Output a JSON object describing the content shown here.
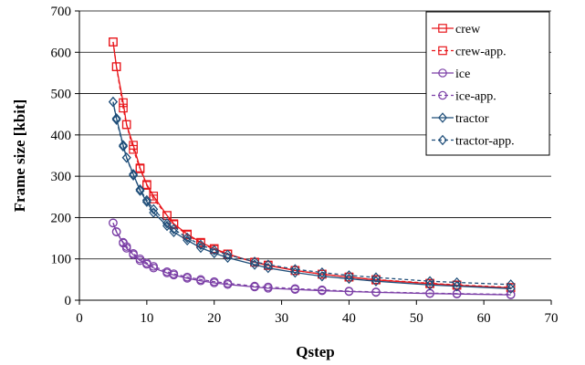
{
  "chart_data": {
    "type": "line",
    "xlabel": "Qstep",
    "ylabel": "Frame size  [kbit]",
    "xlim": [
      0,
      70
    ],
    "ylim": [
      0,
      700
    ],
    "xticks": [
      0,
      10,
      20,
      30,
      40,
      50,
      60,
      70
    ],
    "yticks": [
      0,
      100,
      200,
      300,
      400,
      500,
      600,
      700
    ],
    "grid": "horizontal",
    "legend_position": "top-right",
    "series": [
      {
        "name": "crew",
        "color": "#e8161b",
        "marker": "square",
        "dashed": false,
        "points": [
          [
            5,
            625
          ],
          [
            5.5,
            565
          ],
          [
            6.5,
            478
          ],
          [
            7,
            425
          ],
          [
            8,
            375
          ],
          [
            9,
            320
          ],
          [
            10,
            280
          ],
          [
            11,
            252
          ],
          [
            13,
            205
          ],
          [
            14,
            185
          ],
          [
            16,
            160
          ],
          [
            18,
            140
          ],
          [
            20,
            125
          ],
          [
            22,
            112
          ],
          [
            26,
            92
          ],
          [
            28,
            84
          ],
          [
            32,
            72
          ],
          [
            36,
            63
          ],
          [
            40,
            56
          ],
          [
            44,
            49
          ],
          [
            52,
            40
          ],
          [
            56,
            36
          ],
          [
            64,
            30
          ]
        ]
      },
      {
        "name": "crew-app.",
        "color": "#e8161b",
        "marker": "square",
        "dashed": true,
        "points": [
          [
            5,
            625
          ],
          [
            5.5,
            565
          ],
          [
            6.5,
            465
          ],
          [
            7,
            425
          ],
          [
            8,
            365
          ],
          [
            9,
            318
          ],
          [
            10,
            278
          ],
          [
            11,
            245
          ],
          [
            13,
            205
          ],
          [
            14,
            183
          ],
          [
            16,
            158
          ],
          [
            18,
            138
          ],
          [
            20,
            123
          ],
          [
            22,
            111
          ],
          [
            26,
            92
          ],
          [
            28,
            85
          ],
          [
            32,
            72
          ],
          [
            36,
            63
          ],
          [
            40,
            56
          ],
          [
            44,
            50
          ],
          [
            52,
            41
          ],
          [
            56,
            37
          ],
          [
            64,
            31
          ]
        ]
      },
      {
        "name": "ice",
        "color": "#7b3fa6",
        "marker": "circle",
        "dashed": false,
        "points": [
          [
            5,
            187
          ],
          [
            5.5,
            165
          ],
          [
            6.5,
            138
          ],
          [
            7,
            126
          ],
          [
            8,
            110
          ],
          [
            9,
            96
          ],
          [
            10,
            87
          ],
          [
            11,
            78
          ],
          [
            13,
            66
          ],
          [
            14,
            61
          ],
          [
            16,
            53
          ],
          [
            18,
            47
          ],
          [
            20,
            42
          ],
          [
            22,
            38
          ],
          [
            26,
            32
          ],
          [
            28,
            29
          ],
          [
            32,
            26
          ],
          [
            36,
            23
          ],
          [
            40,
            21
          ],
          [
            44,
            19
          ],
          [
            52,
            16
          ],
          [
            56,
            15
          ],
          [
            64,
            13
          ]
        ]
      },
      {
        "name": "ice-app.",
        "color": "#7b3fa6",
        "marker": "circle",
        "dashed": true,
        "points": [
          [
            5,
            187
          ],
          [
            5.5,
            166
          ],
          [
            6.5,
            140
          ],
          [
            7,
            130
          ],
          [
            8,
            113
          ],
          [
            9,
            100
          ],
          [
            10,
            90
          ],
          [
            11,
            82
          ],
          [
            13,
            69
          ],
          [
            14,
            64
          ],
          [
            16,
            56
          ],
          [
            18,
            50
          ],
          [
            20,
            45
          ],
          [
            22,
            41
          ],
          [
            26,
            34
          ],
          [
            28,
            32
          ],
          [
            32,
            28
          ],
          [
            36,
            25
          ],
          [
            40,
            22
          ],
          [
            44,
            20
          ],
          [
            52,
            17
          ],
          [
            56,
            16
          ],
          [
            64,
            14
          ]
        ]
      },
      {
        "name": "tractor",
        "color": "#1f4e79",
        "marker": "diamond",
        "dashed": false,
        "points": [
          [
            5,
            480
          ],
          [
            5.5,
            440
          ],
          [
            6.5,
            375
          ],
          [
            7,
            345
          ],
          [
            8,
            305
          ],
          [
            9,
            265
          ],
          [
            10,
            238
          ],
          [
            11,
            212
          ],
          [
            13,
            180
          ],
          [
            14,
            165
          ],
          [
            16,
            145
          ],
          [
            18,
            127
          ],
          [
            20,
            114
          ],
          [
            22,
            103
          ],
          [
            26,
            86
          ],
          [
            28,
            78
          ],
          [
            32,
            67
          ],
          [
            36,
            58
          ],
          [
            40,
            52
          ],
          [
            44,
            46
          ],
          [
            52,
            37
          ],
          [
            56,
            34
          ],
          [
            64,
            28
          ]
        ]
      },
      {
        "name": "tractor-app.",
        "color": "#1f4e79",
        "marker": "diamond",
        "dashed": true,
        "points": [
          [
            5,
            480
          ],
          [
            5.5,
            437
          ],
          [
            6.5,
            372
          ],
          [
            7,
            345
          ],
          [
            8,
            302
          ],
          [
            9,
            268
          ],
          [
            10,
            242
          ],
          [
            11,
            220
          ],
          [
            13,
            186
          ],
          [
            14,
            172
          ],
          [
            16,
            151
          ],
          [
            18,
            134
          ],
          [
            20,
            121
          ],
          [
            22,
            110
          ],
          [
            26,
            93
          ],
          [
            28,
            86
          ],
          [
            32,
            75
          ],
          [
            36,
            67
          ],
          [
            40,
            60
          ],
          [
            44,
            55
          ],
          [
            52,
            46
          ],
          [
            56,
            43
          ],
          [
            64,
            38
          ]
        ]
      }
    ]
  }
}
